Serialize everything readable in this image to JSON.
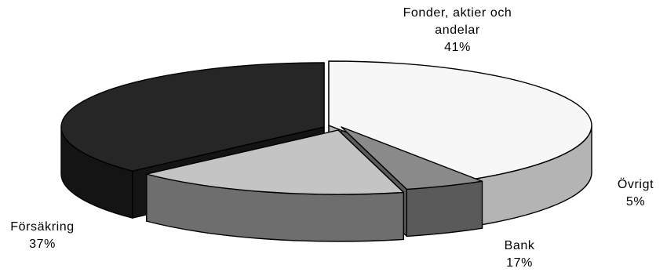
{
  "chart_data": {
    "type": "pie",
    "style": "3d-exploded",
    "legend": "none",
    "slices": [
      {
        "name_lines": [
          "Fonder, aktier och",
          "andelar"
        ],
        "value": 41,
        "value_label": "41%",
        "color": "#f7f7f7"
      },
      {
        "name_lines": [
          "Övrigt"
        ],
        "value": 5,
        "value_label": "5%",
        "color": "#8a8a8a"
      },
      {
        "name_lines": [
          "Bank"
        ],
        "value": 17,
        "value_label": "17%",
        "color": "#c4c4c4"
      },
      {
        "name_lines": [
          "Försäkring"
        ],
        "value": 37,
        "value_label": "37%",
        "color": "#262626"
      }
    ]
  }
}
